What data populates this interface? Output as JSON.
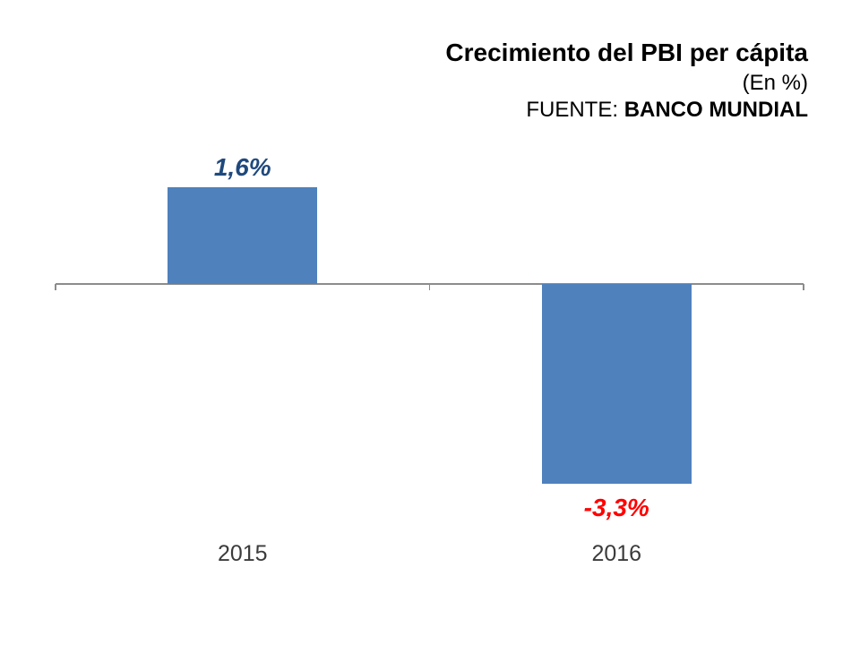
{
  "header": {
    "title": "Crecimiento del PBI per cápita",
    "subtitle": "(En %)",
    "source_prefix": "FUENTE: ",
    "source_name": "BANCO MUNDIAL"
  },
  "chart_data": {
    "type": "bar",
    "title": "Crecimiento del PBI per cápita",
    "subtitle": "(En %)",
    "source": "FUENTE: BANCO MUNDIAL",
    "categories": [
      "2015",
      "2016"
    ],
    "values": [
      1.6,
      -3.3
    ],
    "data_labels": [
      "1,6%",
      "-3,3%"
    ],
    "xlabel": "",
    "ylabel": "",
    "ylim": [
      -3.3,
      1.6
    ],
    "baseline": 0,
    "grid": false,
    "legend": false,
    "colors": {
      "bar": "#4F81BD",
      "positive_label": "#1F497D",
      "negative_label": "#FF0000",
      "axis": "#8C8C8C",
      "category_label": "#3B3B3B"
    }
  }
}
